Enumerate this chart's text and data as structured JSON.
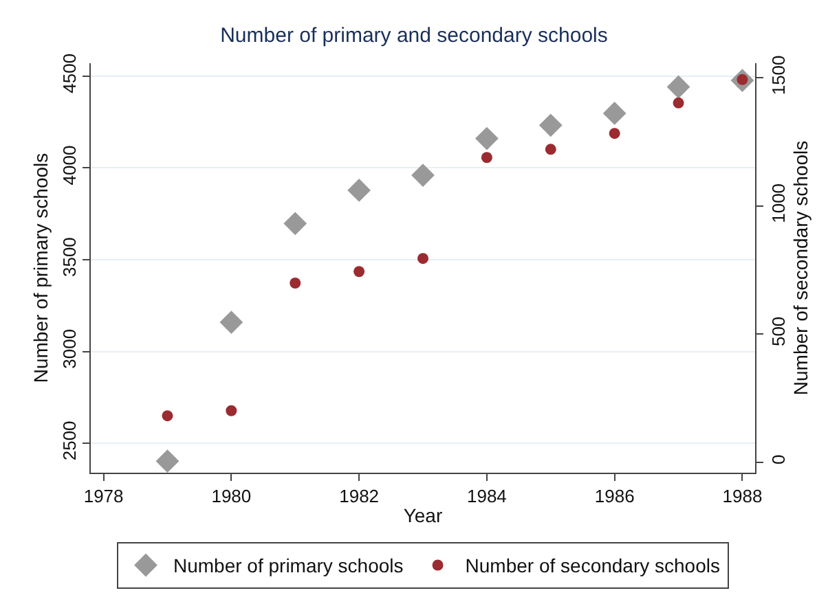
{
  "chart_data": {
    "type": "scatter",
    "title": "Number of primary and secondary schools",
    "xlabel": "Year",
    "ylabel": "Number of primary schools",
    "y2label": "Number of secondary schools",
    "x": [
      1979,
      1980,
      1981,
      1982,
      1983,
      1984,
      1985,
      1986,
      1987,
      1988
    ],
    "series": [
      {
        "name": "Number of primary schools",
        "color": "#999999",
        "marker": "diamond",
        "values": [
          2403,
          3159,
          3697,
          3878,
          3960,
          4160,
          4232,
          4297,
          4441,
          4476
        ]
      },
      {
        "name": "Number of secondary schools",
        "color": "#9b2b30",
        "marker": "circle",
        "axis": "y2",
        "values": [
          181,
          201,
          699,
          744,
          795,
          1189,
          1221,
          1283,
          1402,
          1493
        ]
      }
    ],
    "xlim": [
      1977.8,
      1988.2
    ],
    "xticks": [
      1978,
      1980,
      1982,
      1984,
      1986,
      1988
    ],
    "ylim": [
      2340,
      4570
    ],
    "yticks": [
      2500,
      3000,
      3500,
      4000,
      4500
    ],
    "y2lim": [
      -41,
      1557
    ],
    "y2ticks": [
      0,
      500,
      1000,
      1500
    ],
    "grid": "y",
    "legend": "bottom"
  }
}
